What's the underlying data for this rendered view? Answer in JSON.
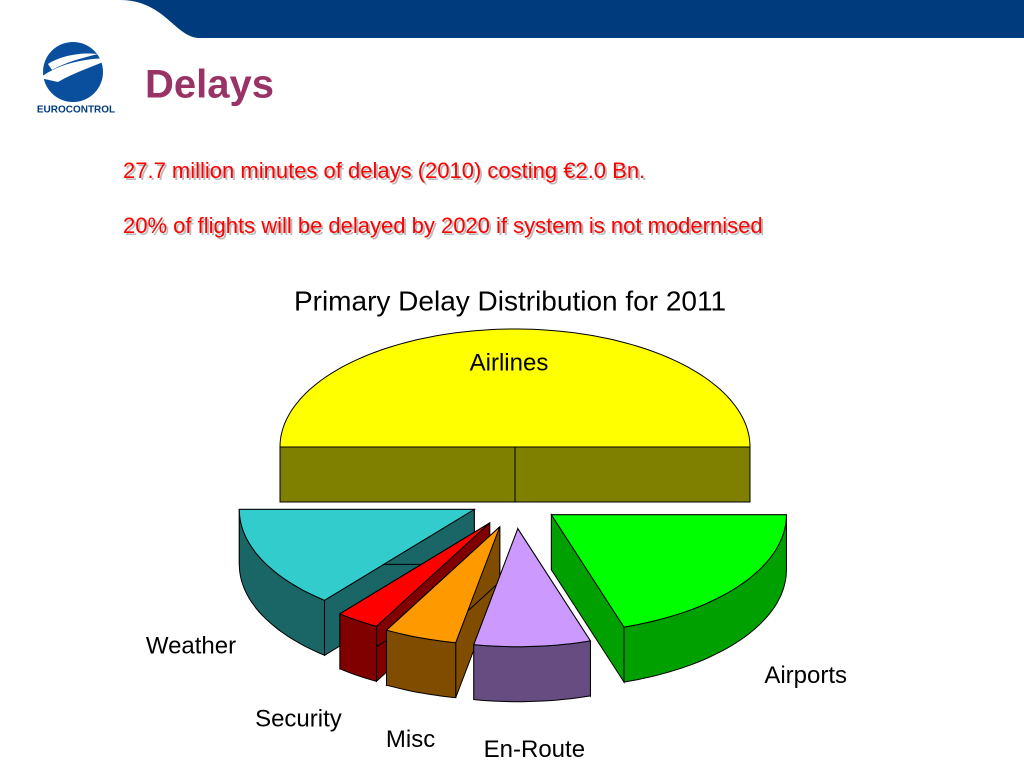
{
  "logo": {
    "text": "EUROCONTROL"
  },
  "header": {
    "title": "Delays"
  },
  "lines": [
    "27.7 million minutes of delays (2010) costing €2.0 Bn.",
    "20% of flights will be delayed by 2020 if system is not modernised"
  ],
  "chart_data": {
    "type": "pie",
    "title": "Primary Delay Distribution for 2011",
    "categories": [
      "Airlines",
      "Airports",
      "En-Route",
      "Misc",
      "Security",
      "Weather"
    ],
    "values": [
      50,
      20,
      8,
      5,
      3,
      14
    ],
    "colors": [
      "#ffff00",
      "#00ff00",
      "#cc99ff",
      "#ff9900",
      "#ff0000",
      "#33cccc"
    ],
    "side_colors": [
      "#808000",
      "#00a000",
      "#664c80",
      "#804c00",
      "#800000",
      "#1a6666"
    ]
  }
}
